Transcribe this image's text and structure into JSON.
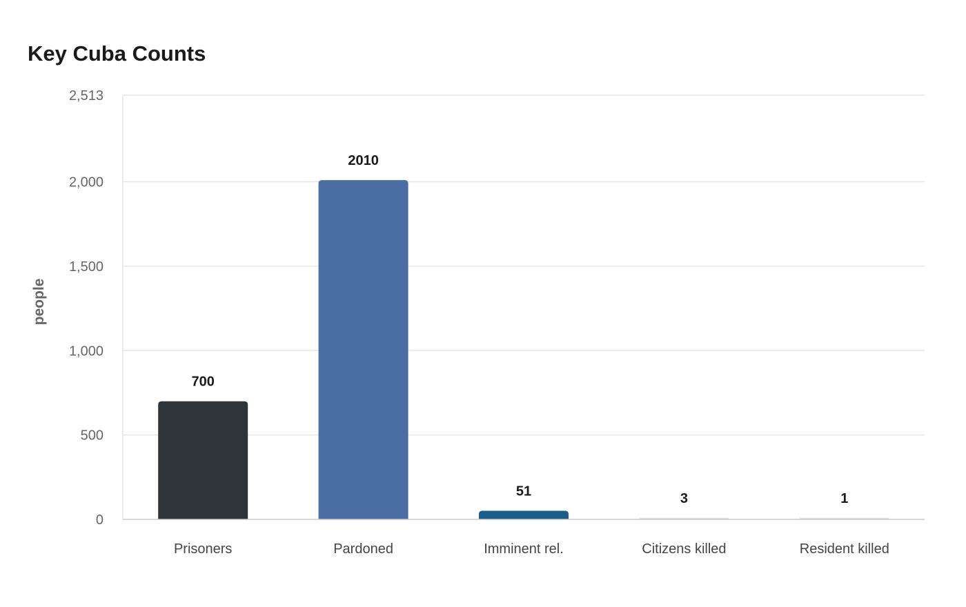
{
  "chart_data": {
    "type": "bar",
    "title": "Key Cuba Counts",
    "xlabel": "",
    "ylabel": "people",
    "categories": [
      "Prisoners",
      "Pardoned",
      "Imminent rel.",
      "Citizens killed",
      "Resident killed"
    ],
    "values": [
      700,
      2010,
      51,
      3,
      1
    ],
    "value_labels": [
      "700",
      "2010",
      "51",
      "3",
      "1"
    ],
    "colors": [
      "#2e3538",
      "#4a6ea3",
      "#1b5f8a",
      "#d9d9d9",
      "#d9d9d9"
    ],
    "ylim": [
      0,
      2513
    ],
    "yticks": [
      0,
      500,
      1000,
      1500,
      2000,
      2513
    ],
    "ytick_labels": [
      "0",
      "500",
      "1,000",
      "1,500",
      "2,000",
      "2,513"
    ],
    "grid": true,
    "legend": "none"
  }
}
